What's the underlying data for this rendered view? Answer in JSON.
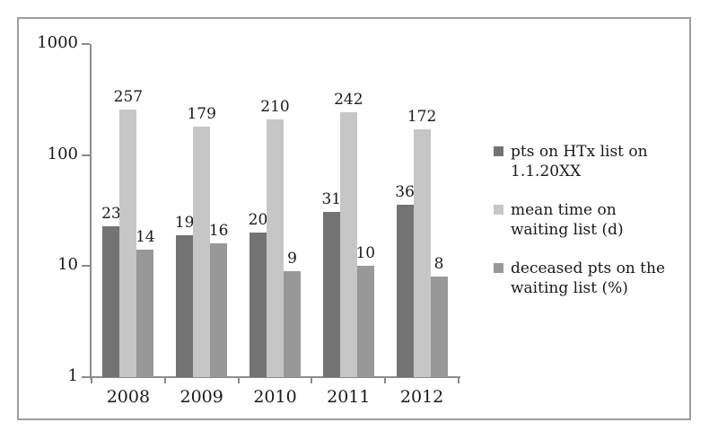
{
  "chart_data": {
    "type": "bar",
    "title": "",
    "xlabel": "",
    "ylabel": "",
    "scale": "log",
    "ylim": [
      1,
      1000
    ],
    "y_ticks": [
      "1",
      "10",
      "100",
      "1000"
    ],
    "grid": false,
    "legend_position": "right",
    "categories": [
      "2008",
      "2009",
      "2010",
      "2011",
      "2012"
    ],
    "series": [
      {
        "name": "pts on HTx list on 1.1.20XX",
        "label_lines": [
          "pts on HTx list on",
          "1.1.20XX"
        ],
        "color": "#737373",
        "values": [
          23,
          19,
          20,
          31,
          36
        ]
      },
      {
        "name": "mean time on waiting list (d)",
        "label_lines": [
          "mean time on",
          "waiting list (d)"
        ],
        "color": "#c6c6c6",
        "values": [
          257,
          179,
          210,
          242,
          172
        ]
      },
      {
        "name": "deceased pts on the waiting list (%)",
        "label_lines": [
          "deceased pts on the",
          "waiting list (%)"
        ],
        "color": "#989898",
        "values": [
          14,
          16,
          9,
          10,
          8
        ]
      }
    ],
    "data_labels_shown": true
  },
  "colors": {
    "frame_border": "#9e9e9e",
    "axis": "#8c8c8c",
    "text": "#1a1a1a",
    "background": "#ffffff"
  }
}
